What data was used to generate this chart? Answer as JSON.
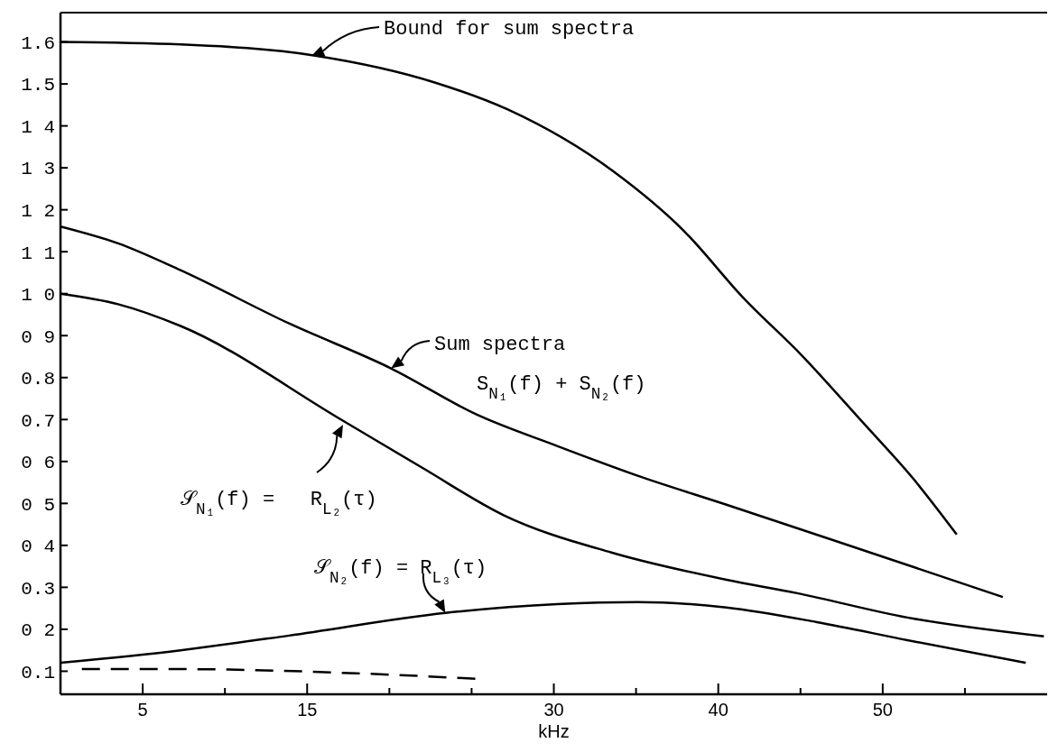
{
  "chart_data": {
    "type": "line",
    "xlabel": "kHz",
    "xlim": [
      0,
      60
    ],
    "ylim": [
      0.045,
      1.67
    ],
    "xticks": [
      {
        "value": 5,
        "label": "5"
      },
      {
        "value": 10,
        "label": null
      },
      {
        "value": 15,
        "label": "15"
      },
      {
        "value": 20,
        "label": null
      },
      {
        "value": 25,
        "label": null
      },
      {
        "value": 30,
        "label": "30"
      },
      {
        "value": 35,
        "label": null
      },
      {
        "value": 40,
        "label": "40"
      },
      {
        "value": 45,
        "label": null
      },
      {
        "value": 50,
        "label": "50"
      },
      {
        "value": 55,
        "label": null
      }
    ],
    "yticks": [
      {
        "value": 0.1,
        "label": "0.1"
      },
      {
        "value": 0.2,
        "label": "0 2"
      },
      {
        "value": 0.3,
        "label": "0.3"
      },
      {
        "value": 0.4,
        "label": "0 4"
      },
      {
        "value": 0.5,
        "label": "0 5"
      },
      {
        "value": 0.6,
        "label": "0 6"
      },
      {
        "value": 0.7,
        "label": "0.7"
      },
      {
        "value": 0.8,
        "label": "0.8"
      },
      {
        "value": 0.9,
        "label": "0 9"
      },
      {
        "value": 1.0,
        "label": "1 0"
      },
      {
        "value": 1.1,
        "label": "1 1"
      },
      {
        "value": 1.2,
        "label": "1 2"
      },
      {
        "value": 1.3,
        "label": "1 3"
      },
      {
        "value": 1.4,
        "label": "1 4"
      },
      {
        "value": 1.5,
        "label": "1.5"
      },
      {
        "value": 1.6,
        "label": "1.6"
      }
    ],
    "grid": false,
    "series": [
      {
        "color": "#000000",
        "x": [
          0,
          7.3,
          15.4,
          22.8,
          27.2,
          33.6,
          38,
          41.5,
          45.1,
          48.7,
          51.9,
          54.5
        ],
        "values": [
          1.6,
          1.594,
          1.568,
          1.503,
          1.439,
          1.292,
          1.146,
          0.991,
          0.852,
          0.697,
          0.557,
          0.426
        ]
      },
      {
        "color": "#000000",
        "x": [
          0,
          3.5,
          7.3,
          13.9,
          20.1,
          25.3,
          30.2,
          35.1,
          40.5,
          47.1,
          57.3
        ],
        "values": [
          1.16,
          1.12,
          1.056,
          0.929,
          0.822,
          0.712,
          0.637,
          0.566,
          0.497,
          0.411,
          0.277
        ]
      },
      {
        "color": "#000000",
        "x": [
          0,
          3.5,
          7.3,
          17.1,
          22,
          27,
          33.5,
          40.5,
          44.8,
          51.5,
          59.8
        ],
        "values": [
          1.0,
          0.975,
          0.923,
          0.699,
          0.585,
          0.471,
          0.383,
          0.318,
          0.286,
          0.228,
          0.183
        ]
      },
      {
        "color": "#000000",
        "x": [
          0,
          7.3,
          13.9,
          23.4,
          30.2,
          35.1,
          40.5,
          46,
          51.5,
          58.7
        ],
        "values": [
          0.12,
          0.15,
          0.185,
          0.239,
          0.26,
          0.265,
          0.252,
          0.217,
          0.174,
          0.12
        ]
      },
      {
        "color": "#000000",
        "line_style": "dashed",
        "x": [
          1.3,
          7.3,
          18,
          25.3
        ],
        "values": [
          0.105,
          0.105,
          0.095,
          0.082
        ]
      }
    ],
    "annotations": [
      "Bound for sum spectra",
      {
        "text": "Sum spectra",
        "x": 20.1,
        "y": 0.822
      },
      "S$_{N₁}$(f) + S$_{N₂}$(f)",
      "𝒮$_{N₁}$(f) =   R$_{L₂}$(τ)",
      {
        "text": "𝒮$_{N₂}$(f) = R$_{L₃}$(τ)",
        "x": 23.4,
        "y": 0.239
      }
    ]
  }
}
